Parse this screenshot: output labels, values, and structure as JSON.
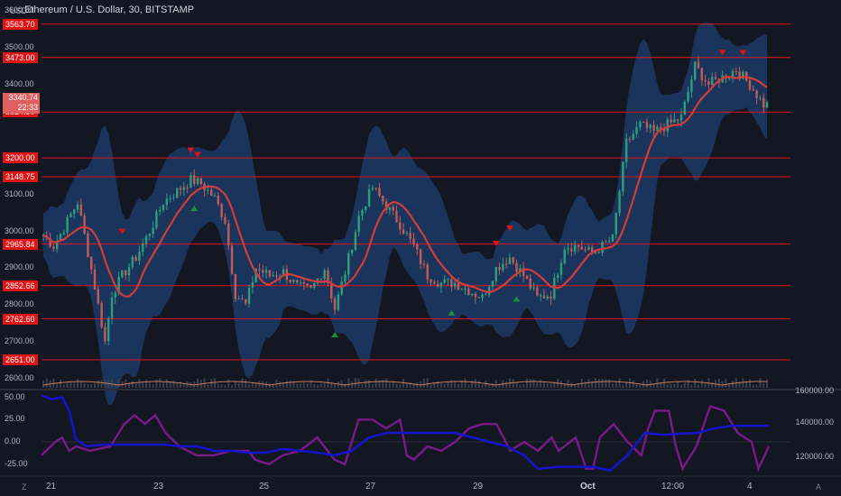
{
  "header": {
    "title": "Ethereum / U.S. Dollar, 30, BITSTAMP",
    "currency": "USD"
  },
  "current_price": {
    "value": "3340.74",
    "timer": "22:33"
  },
  "price_levels": [
    "3563.70",
    "3473.00",
    "3324.90",
    "3200.00",
    "3148.75",
    "2965.84",
    "2852.66",
    "2762.60",
    "2651.00"
  ],
  "price_axis": [
    "3600.00",
    "3500.00",
    "3400.00",
    "3100.00",
    "3000.00",
    "2900.00",
    "2800.00",
    "2700.00",
    "2600.00"
  ],
  "osc_axis": [
    "50.00",
    "25.00",
    "0.00",
    "-25.00"
  ],
  "volume_axis": [
    "160000.00",
    "140000.00",
    "120000.00"
  ],
  "time_axis": [
    "21",
    "23",
    "25",
    "27",
    "29",
    "Oct",
    "12:00",
    "4"
  ],
  "corner_left": "Z",
  "corner_right": "A",
  "colors": {
    "bg": "#131722",
    "level": "#e01414",
    "ma": "#d23c3c",
    "band": "#1c3a66",
    "osc_blue": "#1414c8",
    "osc_purple": "#7a1a8a"
  },
  "chart_data": {
    "type": "line",
    "series": [],
    "price_anchors": [
      [
        0,
        2990
      ],
      [
        3,
        2960
      ],
      [
        6,
        3010
      ],
      [
        10,
        3080
      ],
      [
        12,
        2990
      ],
      [
        15,
        2850
      ],
      [
        18,
        2700
      ],
      [
        20,
        2830
      ],
      [
        23,
        2880
      ],
      [
        27,
        2930
      ],
      [
        31,
        3000
      ],
      [
        35,
        3080
      ],
      [
        39,
        3110
      ],
      [
        43,
        3140
      ],
      [
        46,
        3130
      ],
      [
        50,
        3090
      ],
      [
        53,
        3030
      ],
      [
        56,
        2830
      ],
      [
        59,
        2800
      ],
      [
        62,
        2900
      ],
      [
        66,
        2880
      ],
      [
        70,
        2890
      ],
      [
        74,
        2850
      ],
      [
        78,
        2840
      ],
      [
        82,
        2900
      ],
      [
        85,
        2790
      ],
      [
        88,
        2890
      ],
      [
        92,
        3040
      ],
      [
        96,
        3120
      ],
      [
        100,
        3070
      ],
      [
        104,
        3020
      ],
      [
        108,
        2960
      ],
      [
        112,
        2880
      ],
      [
        116,
        2860
      ],
      [
        120,
        2860
      ],
      [
        124,
        2840
      ],
      [
        128,
        2820
      ],
      [
        132,
        2900
      ],
      [
        136,
        2930
      ],
      [
        140,
        2880
      ],
      [
        144,
        2820
      ],
      [
        148,
        2830
      ],
      [
        152,
        2960
      ],
      [
        156,
        2960
      ],
      [
        160,
        2940
      ],
      [
        163,
        2960
      ],
      [
        166,
        2980
      ],
      [
        170,
        3240
      ],
      [
        174,
        3290
      ],
      [
        178,
        3270
      ],
      [
        182,
        3290
      ],
      [
        186,
        3310
      ],
      [
        190,
        3450
      ],
      [
        194,
        3400
      ],
      [
        198,
        3420
      ],
      [
        202,
        3440
      ],
      [
        206,
        3400
      ],
      [
        210,
        3345
      ]
    ],
    "price_range": [
      2580,
      3600
    ],
    "oscillator_blue": [
      [
        0,
        52
      ],
      [
        3,
        48
      ],
      [
        6,
        50
      ],
      [
        8,
        35
      ],
      [
        10,
        3
      ],
      [
        13,
        -5
      ],
      [
        18,
        -3
      ],
      [
        24,
        -3
      ],
      [
        30,
        -3
      ],
      [
        36,
        -3
      ],
      [
        40,
        -5
      ],
      [
        45,
        -5
      ],
      [
        50,
        -10
      ],
      [
        55,
        -10
      ],
      [
        60,
        -12
      ],
      [
        65,
        -12
      ],
      [
        70,
        -8
      ],
      [
        75,
        -10
      ],
      [
        80,
        -12
      ],
      [
        85,
        -15
      ],
      [
        90,
        -10
      ],
      [
        95,
        5
      ],
      [
        100,
        10
      ],
      [
        110,
        10
      ],
      [
        120,
        10
      ],
      [
        125,
        5
      ],
      [
        130,
        0
      ],
      [
        135,
        -5
      ],
      [
        140,
        -15
      ],
      [
        144,
        -30
      ],
      [
        150,
        -28
      ],
      [
        160,
        -28
      ],
      [
        165,
        -32
      ],
      [
        170,
        -15
      ],
      [
        175,
        10
      ],
      [
        180,
        8
      ],
      [
        190,
        10
      ],
      [
        195,
        15
      ],
      [
        200,
        18
      ],
      [
        210,
        18
      ]
    ],
    "oscillator_purple": [
      [
        0,
        -15
      ],
      [
        4,
        0
      ],
      [
        6,
        5
      ],
      [
        8,
        -10
      ],
      [
        10,
        -5
      ],
      [
        14,
        -10
      ],
      [
        20,
        -5
      ],
      [
        24,
        20
      ],
      [
        27,
        30
      ],
      [
        30,
        20
      ],
      [
        33,
        30
      ],
      [
        36,
        10
      ],
      [
        40,
        -5
      ],
      [
        45,
        -15
      ],
      [
        50,
        -15
      ],
      [
        55,
        -10
      ],
      [
        60,
        -10
      ],
      [
        62,
        -20
      ],
      [
        66,
        -25
      ],
      [
        70,
        -15
      ],
      [
        75,
        -10
      ],
      [
        80,
        5
      ],
      [
        85,
        -20
      ],
      [
        88,
        -25
      ],
      [
        92,
        25
      ],
      [
        96,
        25
      ],
      [
        100,
        15
      ],
      [
        104,
        25
      ],
      [
        106,
        -15
      ],
      [
        108,
        -20
      ],
      [
        112,
        -5
      ],
      [
        116,
        -10
      ],
      [
        120,
        0
      ],
      [
        124,
        15
      ],
      [
        128,
        20
      ],
      [
        132,
        20
      ],
      [
        136,
        -10
      ],
      [
        140,
        0
      ],
      [
        144,
        -10
      ],
      [
        148,
        5
      ],
      [
        150,
        -10
      ],
      [
        155,
        5
      ],
      [
        158,
        -30
      ],
      [
        160,
        -30
      ],
      [
        162,
        5
      ],
      [
        166,
        20
      ],
      [
        170,
        0
      ],
      [
        174,
        -15
      ],
      [
        176,
        15
      ],
      [
        178,
        35
      ],
      [
        182,
        35
      ],
      [
        184,
        -5
      ],
      [
        186,
        -30
      ],
      [
        190,
        -5
      ],
      [
        194,
        40
      ],
      [
        198,
        35
      ],
      [
        202,
        10
      ],
      [
        206,
        0
      ],
      [
        208,
        -30
      ],
      [
        211,
        -5
      ]
    ],
    "xlabel": "",
    "ylabel": ""
  }
}
